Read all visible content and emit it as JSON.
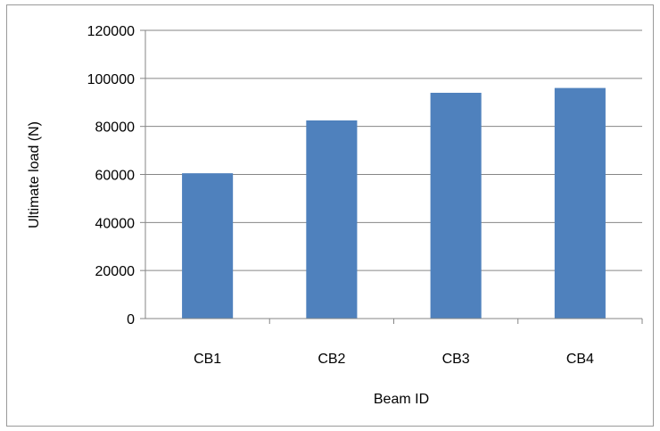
{
  "chart_data": {
    "type": "bar",
    "title": "",
    "xlabel": "Beam ID",
    "ylabel": "Ultimate load (N)",
    "categories": [
      "CB1",
      "CB2",
      "CB3",
      "CB4"
    ],
    "values": [
      60500,
      82500,
      94000,
      96000
    ],
    "ylim": [
      0,
      120000
    ],
    "yticks": [
      "0",
      "20000",
      "40000",
      "60000",
      "80000",
      "100000",
      "120000"
    ],
    "grid": true,
    "legend": "none",
    "bar_color": "#4f81bd",
    "grid_color": "#868686"
  }
}
